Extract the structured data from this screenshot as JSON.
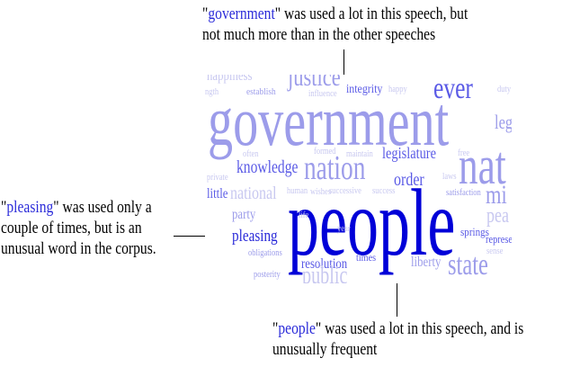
{
  "annotations": {
    "top": {
      "keyword": "government",
      "line1_rest": "\" was used a lot in this speech, but",
      "line2": "not much more than in the other speeches"
    },
    "left": {
      "keyword": "pleasing",
      "line1_rest": "\" was used only a",
      "line2": "couple of times, but is an",
      "line3": "unusual word in the corpus."
    },
    "bottom": {
      "keyword": "people",
      "line1_rest": "\" was used a lot in this speech, and is",
      "line2": "unusually frequent"
    }
  },
  "word_cloud": {
    "colors": {
      "strong": "#0000d8",
      "medium": "#5a5ae6",
      "light": "#9c9cea",
      "pale": "#c8c8f0"
    },
    "words": [
      {
        "text": "happiness",
        "color": "#c8c8f0"
      },
      {
        "text": "establish",
        "color": "#9c9cea"
      },
      {
        "text": "justice",
        "color": "#9c9cea"
      },
      {
        "text": "integrity",
        "color": "#5a5ae6"
      },
      {
        "text": "happy",
        "color": "#c8c8f0"
      },
      {
        "text": "ever",
        "color": "#5a5ae6"
      },
      {
        "text": "duty",
        "color": "#c8c8f0"
      },
      {
        "text": "ngth",
        "color": "#c8c8f0"
      },
      {
        "text": "influence",
        "color": "#c8c8f0"
      },
      {
        "text": "government",
        "color": "#9c9cea"
      },
      {
        "text": "legi",
        "color": "#9c9cea"
      },
      {
        "text": "often",
        "color": "#c8c8f0"
      },
      {
        "text": "formed",
        "color": "#c8c8f0"
      },
      {
        "text": "maintain",
        "color": "#c8c8f0"
      },
      {
        "text": "legislature",
        "color": "#5a5ae6"
      },
      {
        "text": "free",
        "color": "#c8c8f0"
      },
      {
        "text": "nat",
        "color": "#9c9cea"
      },
      {
        "text": "private",
        "color": "#c8c8f0"
      },
      {
        "text": "knowledge",
        "color": "#5a5ae6"
      },
      {
        "text": "nation",
        "color": "#9c9cea"
      },
      {
        "text": "order",
        "color": "#5a5ae6"
      },
      {
        "text": "laws",
        "color": "#c8c8f0"
      },
      {
        "text": "little",
        "color": "#5a5ae6"
      },
      {
        "text": "national",
        "color": "#c8c8f0"
      },
      {
        "text": "human",
        "color": "#c8c8f0"
      },
      {
        "text": "wishes",
        "color": "#c8c8f0"
      },
      {
        "text": "successive",
        "color": "#c8c8f0"
      },
      {
        "text": "success",
        "color": "#c8c8f0"
      },
      {
        "text": "satisfaction",
        "color": "#9c9cea"
      },
      {
        "text": "mi",
        "color": "#9c9cea"
      },
      {
        "text": "party",
        "color": "#9c9cea"
      },
      {
        "text": "pea",
        "color": "#c8c8f0"
      },
      {
        "text": "people",
        "color": "#0000d8"
      },
      {
        "text": "life",
        "color": "#c8c8f0"
      },
      {
        "text": "pleasing",
        "color": "#2b2bd9"
      },
      {
        "text": "year",
        "color": "#c8c8f0"
      },
      {
        "text": "springs",
        "color": "#5a5ae6"
      },
      {
        "text": "represe",
        "color": "#5a5ae6"
      },
      {
        "text": "sense",
        "color": "#c8c8f0"
      },
      {
        "text": "obligations",
        "color": "#9c9cea"
      },
      {
        "text": "times",
        "color": "#5a5ae6"
      },
      {
        "text": "resolution",
        "color": "#5a5ae6"
      },
      {
        "text": "liberty",
        "color": "#9c9cea"
      },
      {
        "text": "state",
        "color": "#9c9cea"
      },
      {
        "text": "posterity",
        "color": "#9c9cea"
      },
      {
        "text": "public",
        "color": "#c8c8f0"
      }
    ]
  }
}
